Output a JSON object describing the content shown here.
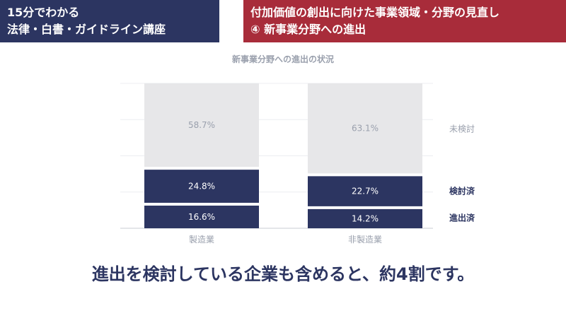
{
  "header_left": {
    "line1": "15分でわかる",
    "line2": "法律・白書・ガイドライン講座"
  },
  "header_right": {
    "line1": "付加価値の創出に向けた事業領域・分野の見直し",
    "line2": "④ 新事業分野への進出"
  },
  "colors": {
    "navy": "#2c3561",
    "red": "#a82c3a",
    "gray_bar": "#e7e7e9",
    "gray_text": "#9aa0ad"
  },
  "chart_data": {
    "type": "bar",
    "stacked": true,
    "title": "新事業分野への進出の状況",
    "categories": [
      "製造業",
      "非製造業"
    ],
    "series": [
      {
        "name": "進出済",
        "values": [
          16.6,
          14.2
        ],
        "labels": [
          "16.6%",
          "14.2%"
        ],
        "color": "#2c3561"
      },
      {
        "name": "検討済",
        "values": [
          24.8,
          22.7
        ],
        "labels": [
          "24.8%",
          "22.7%"
        ],
        "color": "#2c3561"
      },
      {
        "name": "未検討",
        "values": [
          58.7,
          63.1
        ],
        "labels": [
          "58.7%",
          "63.1%"
        ],
        "color": "#e7e7e9"
      }
    ],
    "ylim": [
      0,
      100
    ],
    "grid": true,
    "legend": "right"
  },
  "headline": "進出を検討している企業も含めると、約4割です。"
}
